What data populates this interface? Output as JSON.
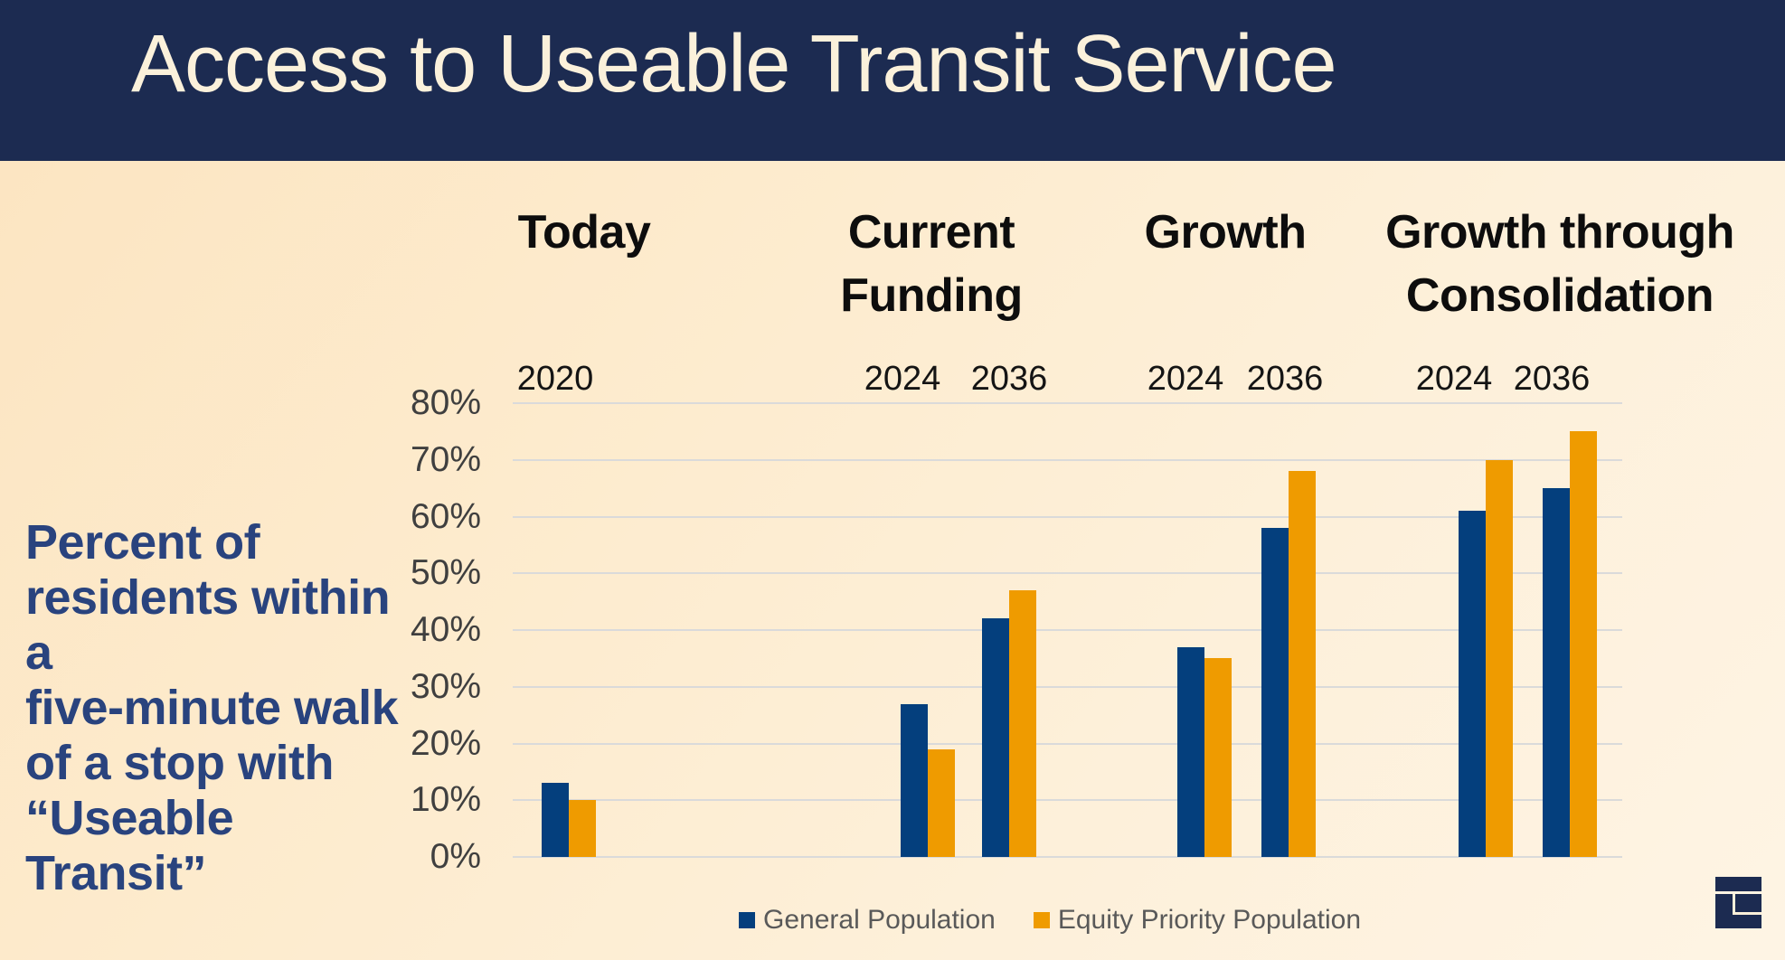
{
  "slide_title": "Access to Useable Transit Service",
  "annotation_lines": [
    "Percent of",
    "residents within a",
    "five-minute walk",
    "of a stop with",
    "“Useable Transit”"
  ],
  "colors": {
    "header_bg": "#1C2B51",
    "title_text": "#FBF1DB",
    "background_top_left": "#FCE4C0",
    "background_bottom_right": "#FEF4E4",
    "general_population_bar": "#043F7D",
    "equity_priority_bar": "#EF9B00",
    "gridline": "#DADADA",
    "annotation_text": "#29437E",
    "legend_text": "#595959",
    "logo_navy": "#1C2B51",
    "logo_cream": "#FDF0DA"
  },
  "chart_data": {
    "type": "bar",
    "title": "Access to Useable Transit Service",
    "ylabel": "Percent of residents within a five-minute walk of a stop with “Useable Transit”",
    "xlabel": "",
    "ylim": [
      0,
      80
    ],
    "ytick_labels": [
      "0%",
      "10%",
      "20%",
      "30%",
      "40%",
      "50%",
      "60%",
      "70%",
      "80%"
    ],
    "grid": true,
    "legend_position": "bottom-center",
    "series": [
      {
        "name": "General Population",
        "color": "#043F7D"
      },
      {
        "name": "Equity Priority Population",
        "color": "#EF9B00"
      }
    ],
    "groups": [
      {
        "label": "Today",
        "columns": [
          {
            "year": "2020",
            "values": [
              13,
              10
            ]
          }
        ]
      },
      {
        "label": "Current Funding",
        "columns": [
          {
            "year": "2024",
            "values": [
              27,
              19
            ]
          },
          {
            "year": "2036",
            "values": [
              42,
              47
            ]
          }
        ]
      },
      {
        "label": "Growth",
        "columns": [
          {
            "year": "2024",
            "values": [
              37,
              35
            ]
          },
          {
            "year": "2036",
            "values": [
              58,
              68
            ]
          }
        ]
      },
      {
        "label": "Growth through Consolidation",
        "columns": [
          {
            "year": "2024",
            "values": [
              61,
              70
            ]
          },
          {
            "year": "2036",
            "values": [
              65,
              75
            ]
          }
        ]
      }
    ]
  }
}
